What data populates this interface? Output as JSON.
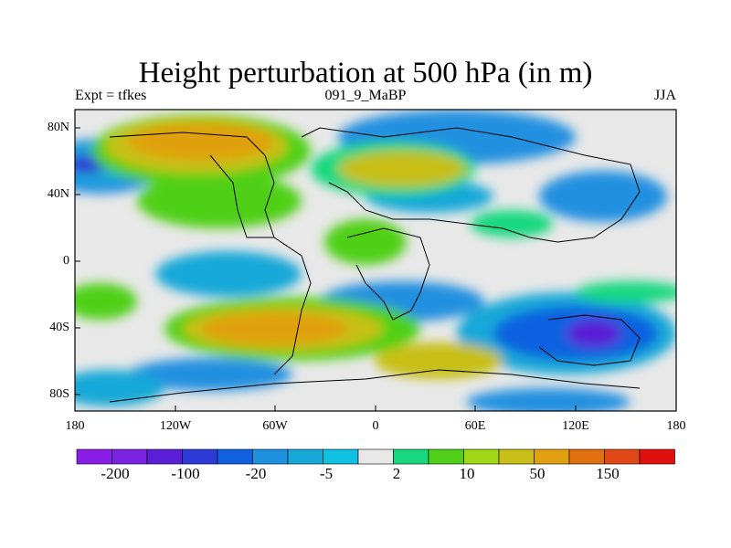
{
  "title": "Height perturbation at 500 hPa (in m)",
  "subtitle_left": "Expt = tfkes",
  "subtitle_center": "091_9_MaBP",
  "subtitle_right": "JJA",
  "lat_ticks": [
    "80N",
    "40N",
    "0",
    "40S",
    "80S"
  ],
  "lon_ticks": [
    "180",
    "120W",
    "60W",
    "0",
    "60E",
    "120E",
    "180"
  ],
  "colorbar": {
    "colors": [
      "#8a1ee6",
      "#7a22e0",
      "#5a1fd6",
      "#2e3ad6",
      "#1060e0",
      "#2090e0",
      "#18a8d8",
      "#10c0e0",
      "#e8e8e8",
      "#18d880",
      "#50d018",
      "#a0d818",
      "#c8c018",
      "#e0a010",
      "#e07010",
      "#e04818",
      "#e01010"
    ],
    "labels": [
      "-200",
      "-100",
      "-20",
      "-5",
      "2",
      "10",
      "50",
      "150"
    ]
  },
  "map_palette": {
    "background": "#e8e8e8",
    "deep_negative": "#5a1fd6",
    "strong_negative": "#2e3ad6",
    "negative": "#1060e0",
    "mid_negative": "#2090e0",
    "weak_negative": "#18a8d8",
    "slight_negative": "#10c0e0",
    "slight_positive": "#18d880",
    "weak_positive": "#50d018",
    "mid_positive": "#a0d818",
    "positive": "#c8c018",
    "strong_positive": "#e0a010"
  }
}
